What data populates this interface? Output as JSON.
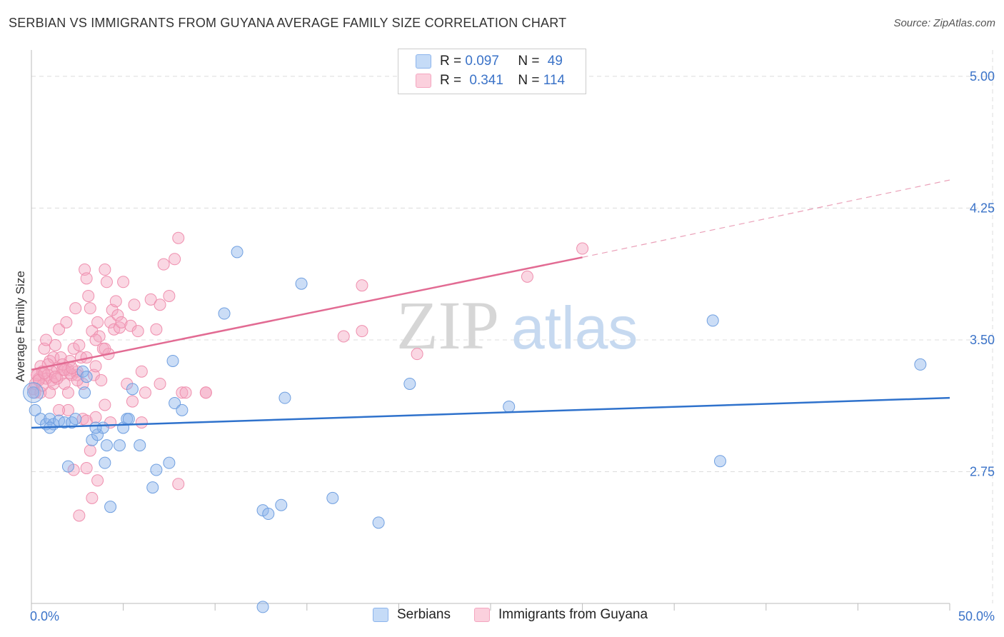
{
  "title": "SERBIAN VS IMMIGRANTS FROM GUYANA AVERAGE FAMILY SIZE CORRELATION CHART",
  "source": "Source: ZipAtlas.com",
  "watermark": {
    "zip": "ZIP",
    "atlas": "atlas"
  },
  "legend": {
    "r_label": "R =",
    "n_label": "N =",
    "rows": [
      {
        "r": "0.097",
        "n": "49"
      },
      {
        "r": "0.341",
        "n": "114"
      }
    ]
  },
  "bottom_legend": {
    "serbians": "Serbians",
    "guyana": "Immigrants from Guyana"
  },
  "chart_data": {
    "type": "scatter",
    "xlabel": "",
    "ylabel": "Average Family Size",
    "x_range": [
      0,
      50
    ],
    "y_range": [
      2.0,
      5.15
    ],
    "x_tick_labels": [
      "0.0%",
      "50.0%"
    ],
    "y_ticks": [
      2.75,
      3.5,
      4.25,
      5.0
    ],
    "y_tick_labels": [
      "2.75",
      "3.50",
      "4.25",
      "5.00"
    ],
    "grid": true,
    "colors": {
      "serbians": "#8cb4ec",
      "guyana": "#f4a6c0",
      "serbians_line": "#2f72cc",
      "guyana_line": "#e26b93"
    },
    "series": [
      {
        "name": "Serbians",
        "r": 0.097,
        "n": 49,
        "trend": {
          "x": [
            0,
            50
          ],
          "y": [
            3.0,
            3.17
          ]
        },
        "points": [
          [
            0.2,
            3.1
          ],
          [
            0.5,
            3.05
          ],
          [
            0.8,
            3.02
          ],
          [
            1.0,
            3.05
          ],
          [
            1.2,
            3.02
          ],
          [
            1.5,
            3.04
          ],
          [
            1.8,
            3.03
          ],
          [
            2.0,
            2.78
          ],
          [
            2.2,
            3.03
          ],
          [
            2.4,
            3.05
          ],
          [
            2.8,
            3.32
          ],
          [
            2.9,
            3.2
          ],
          [
            3.0,
            3.29
          ],
          [
            3.3,
            2.93
          ],
          [
            3.6,
            2.96
          ],
          [
            3.9,
            3.0
          ],
          [
            4.0,
            2.8
          ],
          [
            4.1,
            2.9
          ],
          [
            4.3,
            2.55
          ],
          [
            4.8,
            2.9
          ],
          [
            5.0,
            3.0
          ],
          [
            5.2,
            3.05
          ],
          [
            5.5,
            3.22
          ],
          [
            5.9,
            2.9
          ],
          [
            6.6,
            2.66
          ],
          [
            6.8,
            2.76
          ],
          [
            7.5,
            2.8
          ],
          [
            7.7,
            3.38
          ],
          [
            7.8,
            3.14
          ],
          [
            8.2,
            3.1
          ],
          [
            10.5,
            3.65
          ],
          [
            11.2,
            4.0
          ],
          [
            12.6,
            2.53
          ],
          [
            12.9,
            2.51
          ],
          [
            13.6,
            2.56
          ],
          [
            13.8,
            3.17
          ],
          [
            14.7,
            3.82
          ],
          [
            16.4,
            2.6
          ],
          [
            18.9,
            2.46
          ],
          [
            20.6,
            3.25
          ],
          [
            26.0,
            3.12
          ],
          [
            37.1,
            3.61
          ],
          [
            37.5,
            2.81
          ],
          [
            48.4,
            3.36
          ],
          [
            12.6,
            1.98
          ],
          [
            5.3,
            3.05
          ],
          [
            1.0,
            3.0
          ],
          [
            3.5,
            3.0
          ],
          [
            0.1,
            3.2
          ]
        ]
      },
      {
        "name": "Immigrants from Guyana",
        "r": 0.341,
        "n": 114,
        "trend": {
          "x": [
            0,
            30
          ],
          "y": [
            3.33,
            3.97
          ]
        },
        "trend_dashed": {
          "x": [
            30,
            50
          ],
          "y": [
            3.97,
            4.41
          ]
        },
        "points": [
          [
            0.1,
            3.22
          ],
          [
            0.2,
            3.25
          ],
          [
            0.3,
            3.3
          ],
          [
            0.4,
            3.28
          ],
          [
            0.5,
            3.35
          ],
          [
            0.6,
            3.32
          ],
          [
            0.7,
            3.45
          ],
          [
            0.8,
            3.5
          ],
          [
            0.9,
            3.3
          ],
          [
            1.0,
            3.38
          ],
          [
            1.1,
            3.27
          ],
          [
            1.2,
            3.4
          ],
          [
            1.3,
            3.47
          ],
          [
            1.4,
            3.34
          ],
          [
            1.5,
            3.56
          ],
          [
            1.6,
            3.3
          ],
          [
            1.7,
            3.33
          ],
          [
            1.8,
            3.25
          ],
          [
            1.9,
            3.6
          ],
          [
            2.0,
            3.33
          ],
          [
            2.1,
            3.38
          ],
          [
            2.2,
            3.3
          ],
          [
            2.3,
            3.45
          ],
          [
            2.4,
            3.68
          ],
          [
            2.5,
            3.32
          ],
          [
            2.6,
            3.47
          ],
          [
            2.7,
            3.4
          ],
          [
            2.8,
            3.25
          ],
          [
            2.9,
            3.9
          ],
          [
            3.0,
            3.85
          ],
          [
            3.1,
            3.75
          ],
          [
            3.2,
            3.68
          ],
          [
            3.3,
            3.55
          ],
          [
            3.4,
            3.3
          ],
          [
            3.5,
            3.35
          ],
          [
            3.6,
            3.6
          ],
          [
            3.7,
            3.52
          ],
          [
            3.8,
            3.27
          ],
          [
            3.9,
            3.45
          ],
          [
            4.0,
            3.9
          ],
          [
            4.1,
            3.83
          ],
          [
            4.2,
            3.42
          ],
          [
            4.3,
            3.6
          ],
          [
            4.4,
            3.67
          ],
          [
            4.5,
            3.56
          ],
          [
            4.6,
            3.72
          ],
          [
            4.7,
            3.64
          ],
          [
            4.8,
            3.57
          ],
          [
            4.9,
            3.6
          ],
          [
            5.0,
            3.83
          ],
          [
            5.2,
            3.25
          ],
          [
            5.4,
            3.58
          ],
          [
            5.6,
            3.7
          ],
          [
            5.8,
            3.55
          ],
          [
            6.0,
            3.32
          ],
          [
            6.2,
            3.2
          ],
          [
            6.5,
            3.73
          ],
          [
            6.8,
            3.56
          ],
          [
            7.0,
            3.7
          ],
          [
            7.2,
            3.93
          ],
          [
            7.5,
            3.75
          ],
          [
            7.8,
            3.96
          ],
          [
            8.0,
            4.08
          ],
          [
            8.2,
            3.2
          ],
          [
            8.4,
            3.2
          ],
          [
            0.5,
            3.2
          ],
          [
            0.8,
            3.28
          ],
          [
            1.2,
            3.25
          ],
          [
            1.6,
            3.4
          ],
          [
            2.0,
            3.1
          ],
          [
            2.3,
            2.76
          ],
          [
            2.8,
            3.05
          ],
          [
            3.0,
            2.77
          ],
          [
            3.2,
            2.87
          ],
          [
            3.3,
            2.6
          ],
          [
            3.6,
            2.7
          ],
          [
            3.0,
            3.04
          ],
          [
            3.5,
            3.06
          ],
          [
            4.0,
            3.13
          ],
          [
            4.3,
            3.03
          ],
          [
            2.6,
            2.5
          ],
          [
            5.5,
            3.15
          ],
          [
            6.0,
            3.03
          ],
          [
            7.0,
            3.25
          ],
          [
            8.0,
            2.68
          ],
          [
            9.5,
            3.2
          ],
          [
            9.5,
            3.2
          ],
          [
            17.0,
            3.52
          ],
          [
            18.0,
            3.55
          ],
          [
            18.0,
            3.81
          ],
          [
            21.0,
            3.42
          ],
          [
            27.0,
            3.86
          ],
          [
            30.0,
            4.02
          ],
          [
            1.0,
            3.2
          ],
          [
            1.5,
            3.1
          ],
          [
            2.0,
            3.2
          ],
          [
            2.5,
            3.3
          ],
          [
            3.0,
            3.4
          ],
          [
            3.5,
            3.5
          ],
          [
            4.0,
            3.45
          ],
          [
            0.3,
            3.3
          ],
          [
            0.6,
            3.24
          ],
          [
            0.9,
            3.36
          ],
          [
            1.1,
            3.32
          ],
          [
            1.4,
            3.28
          ],
          [
            1.7,
            3.36
          ],
          [
            2.1,
            3.31
          ],
          [
            2.5,
            3.27
          ],
          [
            0.2,
            3.2
          ],
          [
            0.4,
            3.27
          ],
          [
            0.7,
            3.31
          ],
          [
            1.3,
            3.29
          ],
          [
            1.8,
            3.33
          ],
          [
            2.2,
            3.34
          ]
        ]
      }
    ]
  }
}
